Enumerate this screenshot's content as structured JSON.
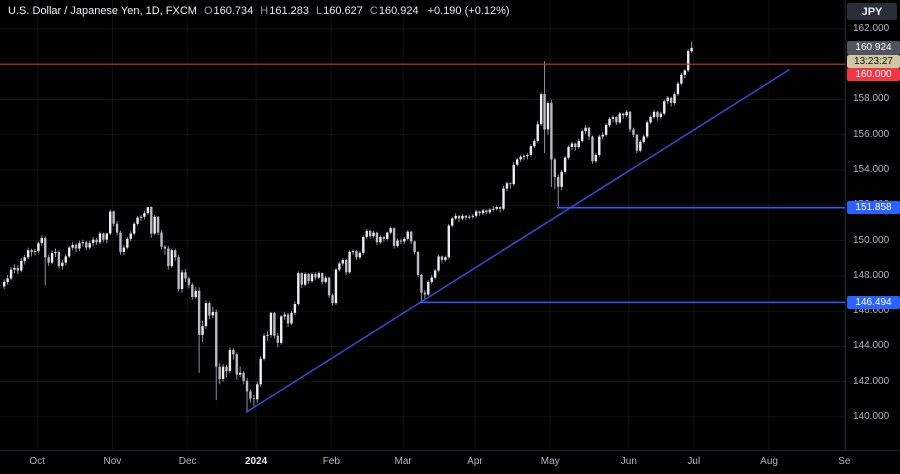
{
  "header": {
    "title_line": "U.S. Dollar / Japanese Yen, 1D, FXCM",
    "ohlc": {
      "o_label": "O",
      "o": "160.734",
      "h_label": "H",
      "h": "161.283",
      "l_label": "L",
      "l": "160.627",
      "c_label": "C",
      "c": "160.924"
    },
    "change": "+0.190 (+0.12%)",
    "currency_badge": "JPY"
  },
  "price_scale": {
    "last_price": {
      "value": 160.924,
      "label": "160.924"
    },
    "countdown": "13:23:27",
    "levels": [
      {
        "label": "160.000",
        "price": 160.0,
        "style": "red"
      },
      {
        "label": "151.858",
        "price": 151.858,
        "style": "blue"
      },
      {
        "label": "146.494",
        "price": 146.494,
        "style": "blue"
      }
    ]
  },
  "colors": {
    "background": "#000000",
    "grid": "rgba(255,255,255,0.07)",
    "up": "#eceff2",
    "down": "#b9bcc2",
    "wick": "#8f939c",
    "red_line": "#c0333e",
    "ray_blue": "#2962ff",
    "trend_blue": "#3347c9",
    "axis_text": "#b2b5be"
  },
  "chart_data": {
    "type": "candlestick",
    "title": "U.S. Dollar / Japanese Yen, 1D, FXCM",
    "symbol": "USD/JPY",
    "interval": "1D",
    "last_bar": {
      "open": 160.734,
      "high": 161.283,
      "low": 160.627,
      "close": 160.924,
      "change": 0.19,
      "change_pct": 0.12
    },
    "y_axis": {
      "ticks": [
        162.0,
        160.0,
        158.0,
        156.0,
        154.0,
        152.0,
        150.0,
        148.0,
        146.0,
        144.0,
        142.0,
        140.0
      ],
      "visible_range": [
        138.1,
        163.6
      ]
    },
    "x_axis": {
      "months": [
        {
          "label": "Oct",
          "index": 10,
          "hl": false
        },
        {
          "label": "Nov",
          "index": 32,
          "hl": false
        },
        {
          "label": "Dec",
          "index": 54,
          "hl": false
        },
        {
          "label": "2024",
          "index": 74,
          "hl": true
        },
        {
          "label": "Feb",
          "index": 96,
          "hl": false
        },
        {
          "label": "Mar",
          "index": 117,
          "hl": false
        },
        {
          "label": "Apr",
          "index": 138,
          "hl": false
        },
        {
          "label": "May",
          "index": 160,
          "hl": false
        },
        {
          "label": "Jun",
          "index": 183,
          "hl": false
        },
        {
          "label": "Jul",
          "index": 202,
          "hl": false
        },
        {
          "label": "Aug",
          "index": 224,
          "hl": false
        },
        {
          "label": "Se",
          "index": 246,
          "hl": false
        }
      ]
    },
    "overlays": {
      "horizontal_line": {
        "price": 160.0,
        "label": "160.000"
      },
      "rays": [
        {
          "price": 151.858,
          "from_index": 162,
          "label": "151.858"
        },
        {
          "price": 146.494,
          "from_index": 122,
          "label": "146.494"
        }
      ],
      "trendline": {
        "from": {
          "index": 71,
          "price": 140.25
        },
        "to": {
          "index": 230,
          "price": 159.7
        }
      }
    },
    "candles": [
      [
        147.4,
        147.8,
        147.25,
        147.65
      ],
      [
        147.65,
        148.05,
        147.5,
        147.85
      ],
      [
        147.85,
        148.5,
        147.75,
        148.35
      ],
      [
        148.35,
        148.65,
        148.15,
        148.45
      ],
      [
        148.45,
        148.6,
        148.1,
        148.3
      ],
      [
        148.3,
        149.0,
        148.2,
        148.85
      ],
      [
        148.85,
        149.2,
        148.65,
        149.05
      ],
      [
        149.05,
        149.6,
        148.95,
        149.45
      ],
      [
        149.45,
        149.55,
        149.1,
        149.35
      ],
      [
        149.35,
        149.55,
        149.15,
        149.4
      ],
      [
        149.4,
        149.95,
        149.3,
        149.85
      ],
      [
        149.85,
        150.3,
        149.7,
        150.15
      ],
      [
        150.15,
        150.25,
        147.45,
        149.05
      ],
      [
        149.05,
        149.2,
        148.55,
        148.75
      ],
      [
        148.75,
        149.45,
        148.65,
        149.3
      ],
      [
        149.3,
        149.55,
        149.05,
        149.35
      ],
      [
        149.35,
        149.45,
        148.4,
        148.55
      ],
      [
        148.55,
        148.9,
        148.35,
        148.75
      ],
      [
        148.75,
        149.25,
        148.6,
        149.1
      ],
      [
        149.1,
        149.7,
        149.0,
        149.6
      ],
      [
        149.6,
        149.9,
        149.45,
        149.75
      ],
      [
        149.75,
        149.85,
        149.35,
        149.55
      ],
      [
        149.55,
        150.0,
        149.4,
        149.85
      ],
      [
        149.85,
        150.05,
        149.65,
        149.9
      ],
      [
        149.9,
        150.0,
        149.45,
        149.6
      ],
      [
        149.6,
        150.0,
        149.5,
        149.85
      ],
      [
        149.85,
        150.2,
        149.7,
        150.05
      ],
      [
        150.05,
        150.15,
        149.75,
        149.9
      ],
      [
        149.9,
        150.5,
        149.8,
        150.4
      ],
      [
        150.4,
        150.45,
        149.9,
        150.05
      ],
      [
        150.05,
        150.45,
        149.85,
        150.4
      ],
      [
        150.4,
        151.75,
        150.3,
        151.65
      ],
      [
        151.65,
        151.7,
        150.8,
        150.95
      ],
      [
        150.95,
        151.1,
        150.3,
        150.45
      ],
      [
        150.45,
        150.55,
        149.2,
        149.35
      ],
      [
        149.35,
        149.75,
        149.2,
        149.6
      ],
      [
        149.6,
        150.2,
        149.5,
        150.1
      ],
      [
        150.1,
        150.55,
        149.95,
        150.4
      ],
      [
        150.4,
        151.05,
        150.3,
        150.95
      ],
      [
        150.95,
        151.4,
        150.85,
        151.3
      ],
      [
        151.3,
        151.45,
        151.1,
        151.35
      ],
      [
        151.35,
        151.7,
        151.2,
        151.55
      ],
      [
        151.55,
        151.91,
        151.45,
        151.9
      ],
      [
        151.9,
        151.95,
        150.15,
        150.4
      ],
      [
        150.4,
        151.45,
        150.3,
        151.35
      ],
      [
        151.35,
        151.4,
        150.3,
        150.45
      ],
      [
        150.45,
        150.6,
        149.5,
        149.65
      ],
      [
        149.65,
        149.75,
        149.2,
        149.55
      ],
      [
        149.55,
        149.7,
        148.35,
        148.55
      ],
      [
        148.55,
        149.55,
        148.45,
        149.45
      ],
      [
        149.45,
        149.55,
        148.85,
        149.05
      ],
      [
        149.05,
        149.2,
        147.1,
        147.25
      ],
      [
        147.25,
        148.35,
        147.05,
        148.2
      ],
      [
        148.2,
        148.4,
        147.65,
        147.85
      ],
      [
        147.85,
        147.95,
        147.3,
        147.5
      ],
      [
        147.5,
        147.6,
        146.65,
        146.8
      ],
      [
        146.8,
        147.35,
        146.7,
        147.15
      ],
      [
        147.15,
        147.35,
        142.5,
        144.65
      ],
      [
        144.65,
        145.45,
        144.25,
        145.15
      ],
      [
        145.15,
        146.6,
        145.0,
        146.45
      ],
      [
        146.45,
        146.55,
        145.55,
        145.75
      ],
      [
        145.75,
        146.25,
        145.6,
        145.95
      ],
      [
        145.95,
        146.1,
        140.95,
        142.85
      ],
      [
        142.85,
        143.05,
        141.85,
        142.15
      ],
      [
        142.15,
        143.0,
        142.0,
        142.85
      ],
      [
        142.85,
        142.95,
        142.25,
        142.6
      ],
      [
        142.6,
        143.95,
        142.5,
        143.8
      ],
      [
        143.8,
        143.9,
        143.25,
        143.55
      ],
      [
        143.55,
        143.65,
        142.1,
        142.4
      ],
      [
        142.4,
        142.85,
        142.25,
        142.5
      ],
      [
        142.5,
        142.6,
        141.85,
        142.05
      ],
      [
        142.05,
        142.2,
        140.25,
        141.45
      ],
      [
        141.45,
        141.55,
        140.8,
        141.05
      ],
      [
        141.05,
        141.25,
        140.6,
        141.0
      ],
      [
        141.0,
        142.0,
        140.8,
        141.85
      ],
      [
        141.85,
        143.45,
        141.7,
        143.3
      ],
      [
        143.3,
        144.75,
        143.2,
        144.6
      ],
      [
        144.6,
        144.85,
        144.3,
        144.65
      ],
      [
        144.65,
        145.95,
        144.5,
        145.9
      ],
      [
        145.9,
        145.95,
        144.45,
        144.6
      ],
      [
        144.6,
        144.75,
        143.95,
        144.2
      ],
      [
        144.2,
        145.8,
        144.1,
        145.7
      ],
      [
        145.7,
        145.95,
        145.5,
        145.8
      ],
      [
        145.8,
        145.9,
        145.1,
        145.3
      ],
      [
        145.3,
        146.0,
        145.2,
        145.9
      ],
      [
        145.9,
        146.55,
        145.75,
        146.4
      ],
      [
        146.4,
        148.25,
        146.3,
        148.15
      ],
      [
        148.15,
        148.2,
        147.3,
        147.5
      ],
      [
        147.5,
        148.2,
        147.4,
        148.1
      ],
      [
        148.1,
        148.15,
        147.55,
        147.7
      ],
      [
        147.7,
        148.2,
        147.6,
        148.1
      ],
      [
        148.1,
        148.2,
        147.75,
        147.9
      ],
      [
        147.9,
        148.25,
        147.8,
        148.15
      ],
      [
        148.15,
        148.2,
        147.5,
        147.65
      ],
      [
        147.65,
        148.0,
        147.55,
        147.9
      ],
      [
        147.9,
        147.95,
        146.75,
        146.9
      ],
      [
        146.9,
        147.0,
        146.3,
        146.45
      ],
      [
        146.45,
        148.45,
        146.35,
        148.35
      ],
      [
        148.35,
        148.8,
        148.25,
        148.7
      ],
      [
        148.7,
        149.0,
        148.55,
        148.9
      ],
      [
        148.9,
        148.95,
        148.05,
        148.2
      ],
      [
        148.2,
        149.45,
        148.1,
        149.35
      ],
      [
        149.35,
        149.5,
        149.2,
        149.4
      ],
      [
        149.4,
        149.45,
        148.9,
        149.05
      ],
      [
        149.05,
        149.4,
        148.95,
        149.3
      ],
      [
        149.3,
        150.3,
        149.2,
        150.2
      ],
      [
        150.2,
        150.65,
        150.1,
        150.55
      ],
      [
        150.55,
        150.6,
        150.1,
        150.25
      ],
      [
        150.25,
        150.55,
        150.15,
        150.45
      ],
      [
        150.45,
        150.5,
        149.75,
        149.9
      ],
      [
        149.9,
        150.3,
        149.8,
        150.2
      ],
      [
        150.2,
        150.25,
        149.95,
        150.1
      ],
      [
        150.1,
        150.5,
        150.0,
        150.45
      ],
      [
        150.45,
        150.8,
        150.35,
        150.7
      ],
      [
        150.7,
        150.75,
        149.55,
        149.7
      ],
      [
        149.7,
        150.1,
        149.6,
        150.0
      ],
      [
        150.0,
        150.1,
        149.8,
        149.95
      ],
      [
        149.95,
        150.2,
        149.8,
        150.1
      ],
      [
        150.1,
        150.6,
        150.0,
        150.5
      ],
      [
        150.5,
        150.55,
        149.8,
        149.95
      ],
      [
        149.95,
        150.0,
        149.2,
        149.35
      ],
      [
        149.35,
        149.4,
        147.95,
        148.05
      ],
      [
        148.05,
        148.1,
        146.49,
        147.05
      ],
      [
        147.05,
        147.2,
        146.6,
        146.95
      ],
      [
        146.95,
        147.75,
        146.85,
        147.65
      ],
      [
        147.65,
        148.05,
        147.55,
        147.9
      ],
      [
        147.9,
        148.4,
        147.8,
        148.3
      ],
      [
        148.3,
        149.2,
        148.2,
        149.1
      ],
      [
        149.1,
        149.15,
        148.75,
        148.9
      ],
      [
        148.9,
        149.15,
        148.8,
        149.05
      ],
      [
        149.05,
        150.95,
        148.95,
        150.85
      ],
      [
        150.85,
        151.35,
        150.75,
        151.25
      ],
      [
        151.25,
        151.55,
        151.15,
        151.4
      ],
      [
        151.4,
        151.45,
        151.05,
        151.25
      ],
      [
        151.25,
        151.5,
        151.15,
        151.4
      ],
      [
        151.4,
        151.45,
        151.15,
        151.3
      ],
      [
        151.3,
        151.45,
        151.2,
        151.35
      ],
      [
        151.35,
        151.5,
        151.25,
        151.4
      ],
      [
        151.4,
        151.75,
        151.3,
        151.65
      ],
      [
        151.65,
        151.7,
        151.4,
        151.55
      ],
      [
        151.55,
        151.8,
        151.45,
        151.7
      ],
      [
        151.7,
        151.75,
        151.5,
        151.6
      ],
      [
        151.6,
        151.85,
        151.5,
        151.75
      ],
      [
        151.75,
        151.95,
        151.65,
        151.8
      ],
      [
        151.8,
        151.98,
        151.7,
        151.9
      ],
      [
        151.9,
        151.95,
        151.6,
        151.8
      ],
      [
        151.8,
        153.1,
        151.7,
        152.95
      ],
      [
        152.95,
        153.35,
        152.8,
        153.25
      ],
      [
        153.25,
        153.3,
        152.95,
        153.2
      ],
      [
        153.2,
        154.45,
        153.1,
        154.3
      ],
      [
        154.3,
        154.7,
        154.2,
        154.6
      ],
      [
        154.6,
        154.85,
        154.45,
        154.75
      ],
      [
        154.75,
        154.9,
        154.55,
        154.8
      ],
      [
        154.8,
        154.95,
        154.6,
        154.85
      ],
      [
        154.85,
        155.45,
        154.75,
        155.35
      ],
      [
        155.35,
        155.75,
        155.25,
        155.65
      ],
      [
        155.65,
        156.8,
        155.55,
        156.6
      ],
      [
        156.6,
        158.4,
        156.5,
        158.3
      ],
      [
        158.3,
        160.17,
        154.95,
        156.3
      ],
      [
        156.3,
        157.9,
        156.0,
        157.8
      ],
      [
        157.8,
        158.0,
        153.04,
        154.6
      ],
      [
        154.6,
        154.7,
        152.9,
        153.6
      ],
      [
        153.6,
        153.75,
        151.86,
        153.05
      ],
      [
        153.05,
        154.0,
        152.85,
        153.9
      ],
      [
        153.9,
        154.8,
        153.8,
        154.7
      ],
      [
        154.7,
        155.4,
        154.6,
        155.3
      ],
      [
        155.3,
        155.6,
        155.15,
        155.5
      ],
      [
        155.5,
        155.55,
        155.1,
        155.3
      ],
      [
        155.3,
        155.75,
        155.2,
        155.65
      ],
      [
        155.65,
        156.3,
        155.55,
        156.2
      ],
      [
        156.2,
        156.55,
        156.05,
        156.4
      ],
      [
        156.4,
        156.45,
        155.7,
        155.9
      ],
      [
        155.9,
        155.95,
        154.35,
        154.5
      ],
      [
        154.5,
        154.95,
        154.4,
        154.85
      ],
      [
        154.85,
        156.0,
        154.75,
        155.9
      ],
      [
        155.9,
        156.15,
        155.75,
        156.0
      ],
      [
        156.0,
        156.65,
        155.9,
        156.55
      ],
      [
        156.55,
        157.0,
        156.45,
        156.9
      ],
      [
        156.9,
        157.1,
        156.7,
        157.0
      ],
      [
        157.0,
        157.05,
        156.55,
        156.7
      ],
      [
        156.7,
        157.3,
        156.6,
        157.2
      ],
      [
        157.2,
        157.25,
        156.9,
        157.1
      ],
      [
        157.1,
        157.4,
        157.0,
        157.3
      ],
      [
        157.3,
        157.35,
        156.15,
        156.3
      ],
      [
        156.3,
        156.4,
        155.85,
        156.0
      ],
      [
        156.0,
        156.05,
        154.95,
        155.1
      ],
      [
        155.1,
        155.7,
        155.0,
        155.6
      ],
      [
        155.6,
        156.0,
        155.5,
        155.9
      ],
      [
        155.9,
        156.8,
        155.8,
        156.7
      ],
      [
        156.7,
        157.1,
        156.6,
        157.0
      ],
      [
        157.0,
        157.4,
        156.9,
        157.3
      ],
      [
        157.3,
        157.35,
        156.8,
        157.0
      ],
      [
        157.0,
        157.3,
        156.9,
        157.2
      ],
      [
        157.2,
        158.0,
        157.1,
        157.9
      ],
      [
        157.9,
        158.2,
        157.75,
        158.1
      ],
      [
        158.1,
        158.15,
        157.6,
        157.8
      ],
      [
        157.8,
        158.4,
        157.7,
        158.3
      ],
      [
        158.3,
        159.0,
        158.2,
        158.9
      ],
      [
        158.9,
        159.5,
        158.8,
        159.4
      ],
      [
        159.4,
        159.7,
        159.2,
        159.65
      ],
      [
        159.65,
        160.87,
        159.55,
        160.75
      ],
      [
        160.734,
        161.283,
        160.627,
        160.924
      ]
    ]
  }
}
